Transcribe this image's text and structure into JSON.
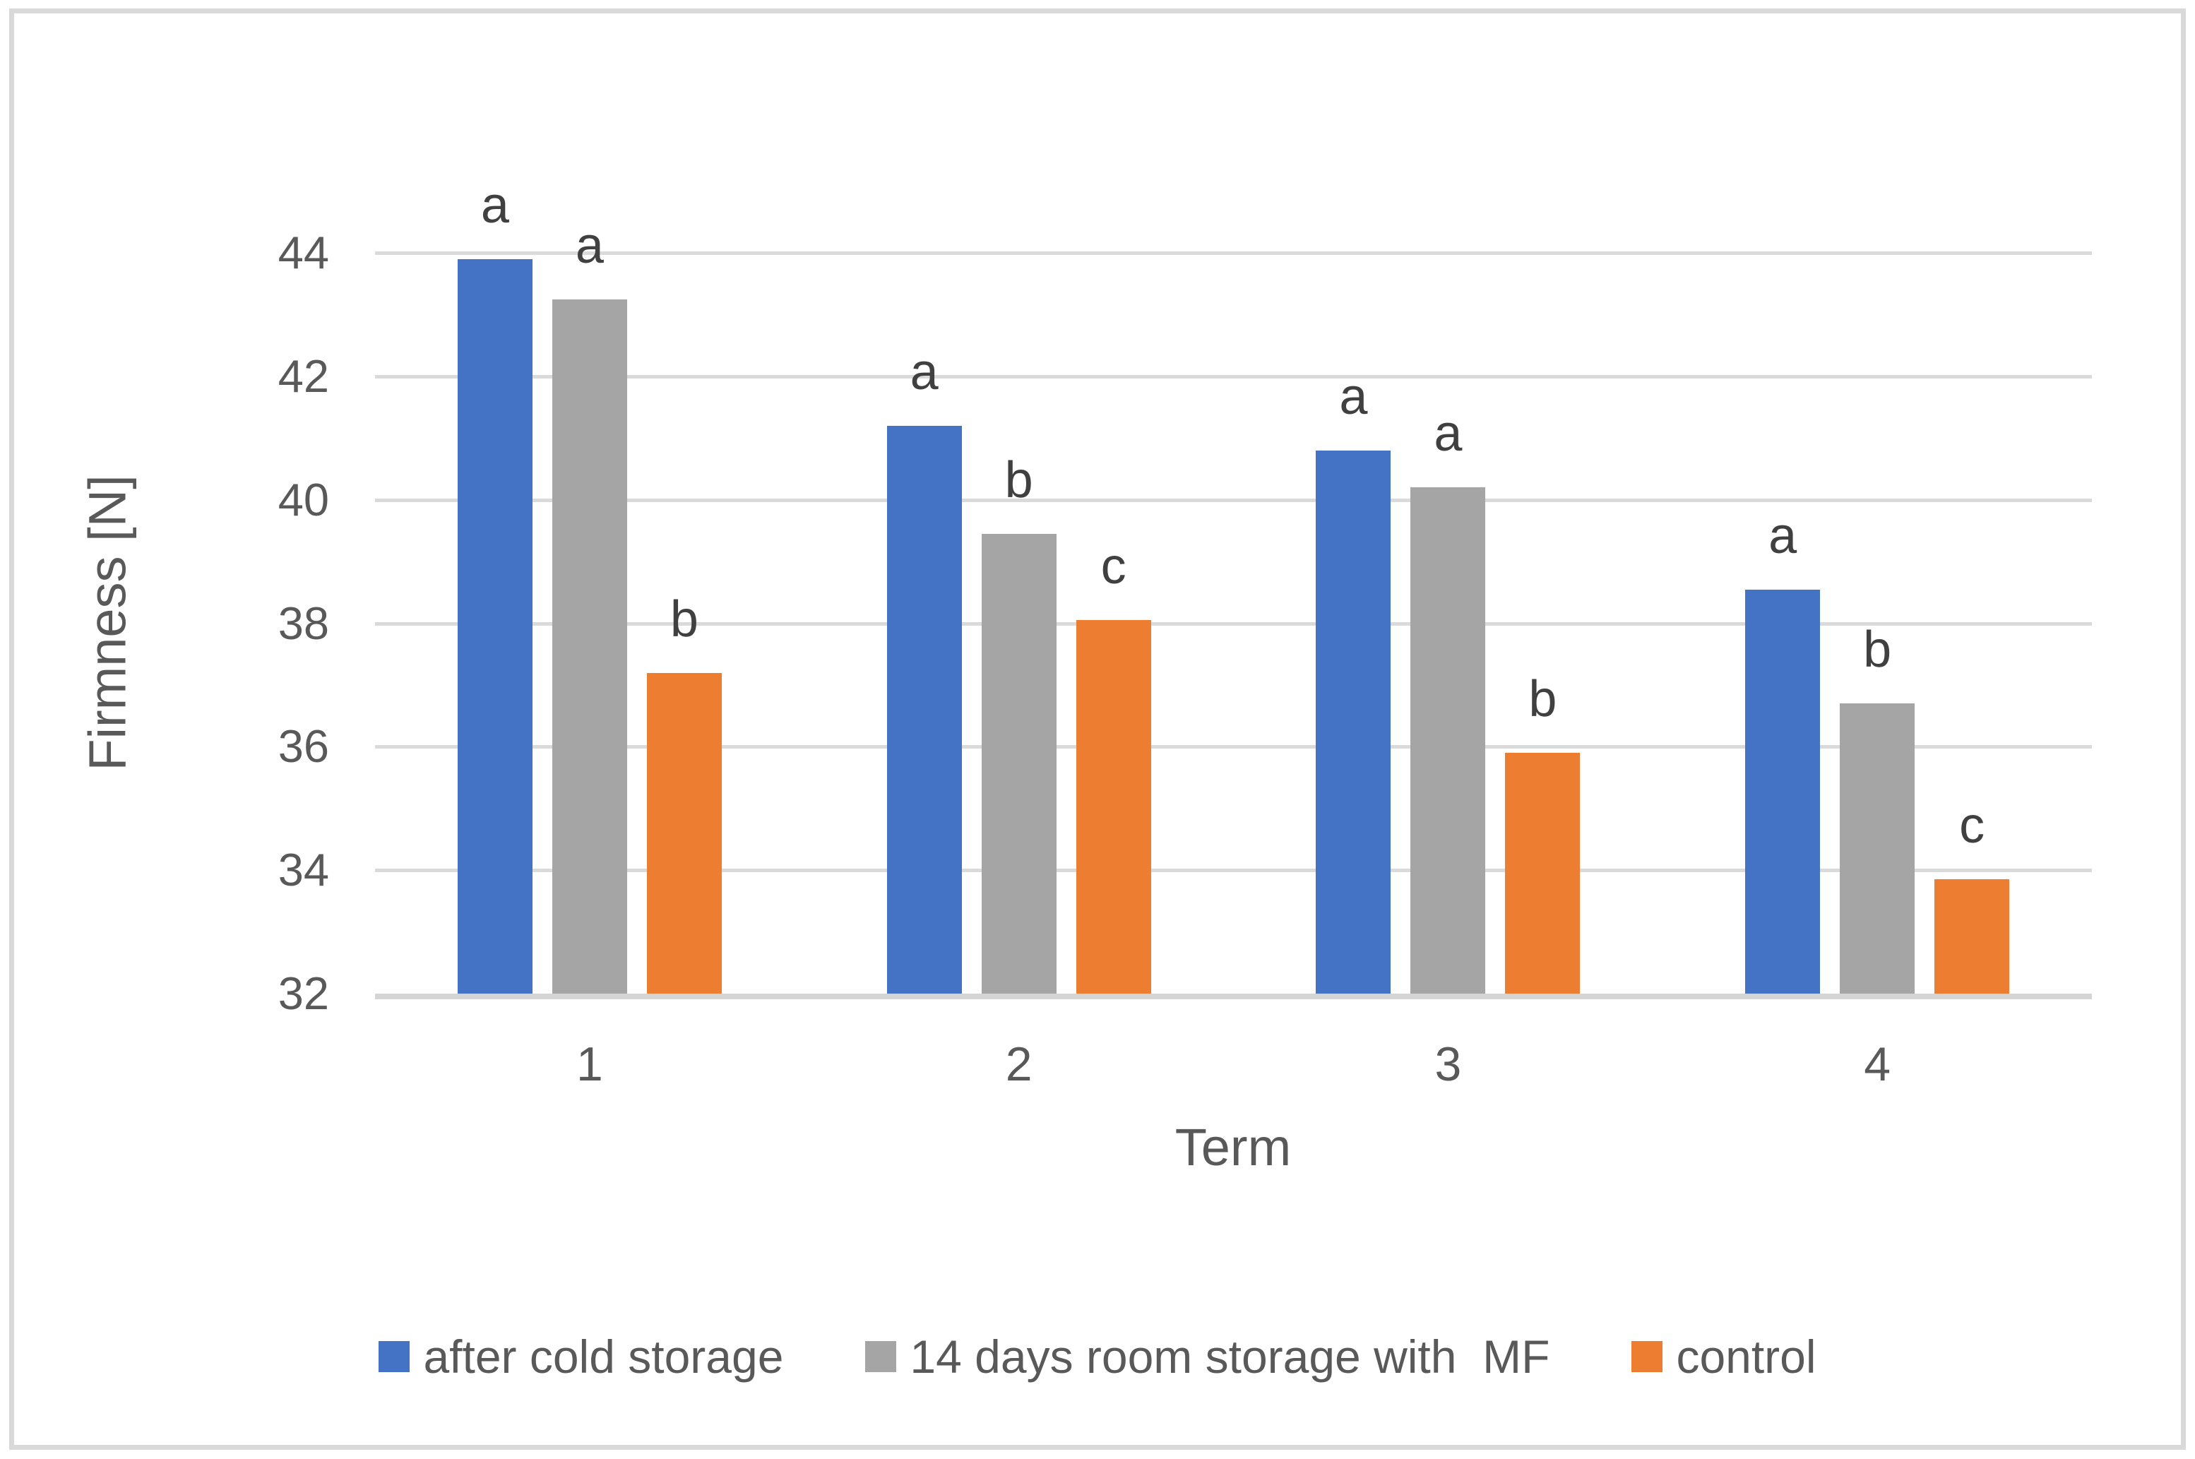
{
  "figure": {
    "background_color": "#ffffff",
    "border_color": "#d9d9d9"
  },
  "chart_data": {
    "type": "bar",
    "title": "",
    "xlabel": "Term",
    "ylabel": "Firmness [N]",
    "categories": [
      "1",
      "2",
      "3",
      "4"
    ],
    "series": [
      {
        "name": "after cold storage",
        "color": "#4472c4",
        "values": [
          43.9,
          41.2,
          40.8,
          38.55
        ],
        "letters": [
          "a",
          "a",
          "a",
          "a"
        ]
      },
      {
        "name": "14 days room storage with  MF",
        "color": "#a5a5a5",
        "values": [
          43.25,
          39.45,
          40.2,
          36.7
        ],
        "letters": [
          "a",
          "b",
          "a",
          "b"
        ]
      },
      {
        "name": "control",
        "color": "#ed7d31",
        "values": [
          37.2,
          38.05,
          35.9,
          33.85
        ],
        "letters": [
          "b",
          "c",
          "b",
          "c"
        ]
      }
    ],
    "ylim": [
      32,
      45
    ],
    "yticks": [
      32,
      34,
      36,
      38,
      40,
      42,
      44
    ],
    "grid": true,
    "gridline_color": "#dadada",
    "axis_line_color": "#d5d5d5",
    "tick_label_color": "#595959",
    "annotation_color": "#404040",
    "legend_position": "bottom"
  }
}
